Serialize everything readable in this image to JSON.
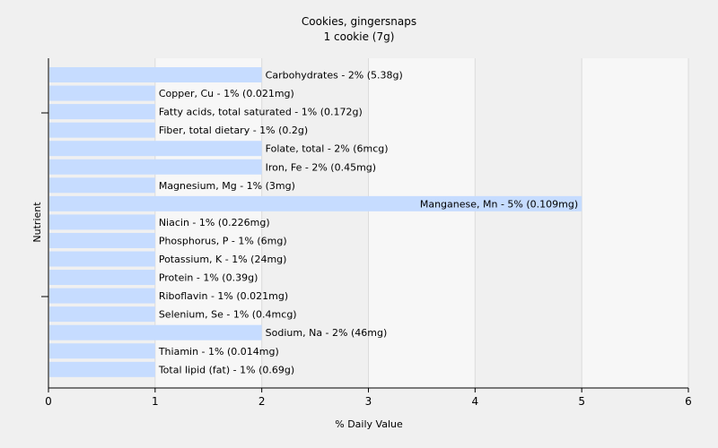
{
  "chart_data": {
    "type": "bar",
    "orientation": "horizontal",
    "title": "Cookies, gingersnaps",
    "subtitle": "1 cookie (7g)",
    "xlabel": "% Daily Value",
    "ylabel": "Nutrient",
    "xlim": [
      0,
      6
    ],
    "xticks": [
      "0",
      "1",
      "2",
      "3",
      "4",
      "5",
      "6"
    ],
    "grid": true,
    "bar_color": "#c6dcff",
    "background": "#f0f0f0",
    "categories": [
      "Carbohydrates",
      "Copper, Cu",
      "Fatty acids, total saturated",
      "Fiber, total dietary",
      "Folate, total",
      "Iron, Fe",
      "Magnesium, Mg",
      "Manganese, Mn",
      "Niacin",
      "Phosphorus, P",
      "Potassium, K",
      "Protein",
      "Riboflavin",
      "Selenium, Se",
      "Sodium, Na",
      "Thiamin",
      "Total lipid (fat)"
    ],
    "values": [
      2,
      1,
      1,
      1,
      2,
      2,
      1,
      5,
      1,
      1,
      1,
      1,
      1,
      1,
      2,
      1,
      1
    ],
    "labels": [
      "Carbohydrates - 2% (5.38g)",
      "Copper, Cu - 1% (0.021mg)",
      "Fatty acids, total saturated - 1% (0.172g)",
      "Fiber, total dietary - 1% (0.2g)",
      "Folate, total - 2% (6mcg)",
      "Iron, Fe - 2% (0.45mg)",
      "Magnesium, Mg - 1% (3mg)",
      "Manganese, Mn - 5% (0.109mg)",
      "Niacin - 1% (0.226mg)",
      "Phosphorus, P - 1% (6mg)",
      "Potassium, K - 1% (24mg)",
      "Protein - 1% (0.39g)",
      "Riboflavin - 1% (0.021mg)",
      "Selenium, Se - 1% (0.4mcg)",
      "Sodium, Na - 2% (46mg)",
      "Thiamin - 1% (0.014mg)",
      "Total lipid (fat) - 1% (0.69g)"
    ]
  }
}
